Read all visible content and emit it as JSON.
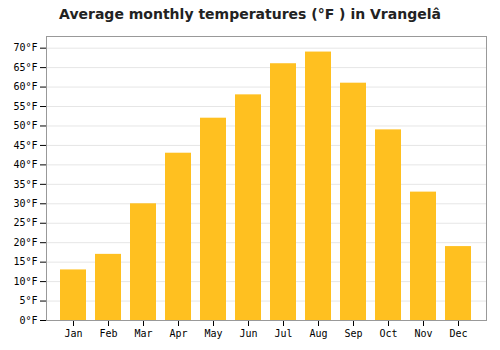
{
  "chart_data": {
    "type": "bar",
    "title": "Average monthly temperatures (°F ) in Vrangelâ",
    "categories": [
      "Jan",
      "Feb",
      "Mar",
      "Apr",
      "May",
      "Jun",
      "Jul",
      "Aug",
      "Sep",
      "Oct",
      "Nov",
      "Dec"
    ],
    "values": [
      13,
      17,
      30,
      43,
      52,
      58,
      66,
      69,
      61,
      49,
      33,
      19
    ],
    "color": "#FFC020",
    "ylim": [
      0,
      73
    ],
    "yticks": [
      {
        "value": 0,
        "label": "0°F"
      },
      {
        "value": 5,
        "label": "5°F"
      },
      {
        "value": 10,
        "label": "10°F"
      },
      {
        "value": 15,
        "label": "15°F"
      },
      {
        "value": 20,
        "label": "20°F"
      },
      {
        "value": 25,
        "label": "25°F"
      },
      {
        "value": 30,
        "label": "30°F"
      },
      {
        "value": 35,
        "label": "35°F"
      },
      {
        "value": 40,
        "label": "40°F"
      },
      {
        "value": 45,
        "label": "45°F"
      },
      {
        "value": 50,
        "label": "50°F"
      },
      {
        "value": 55,
        "label": "55°F"
      },
      {
        "value": 60,
        "label": "60°F"
      },
      {
        "value": 65,
        "label": "65°F"
      },
      {
        "value": 70,
        "label": "70°F"
      }
    ],
    "grid": true
  }
}
